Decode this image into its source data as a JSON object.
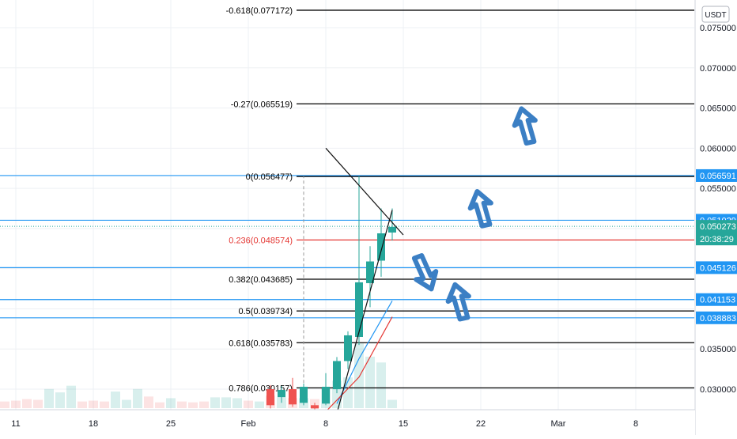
{
  "currency": "USDT",
  "time_badge": "20:38:29",
  "chart_data": {
    "type": "candlestick",
    "x_ticks": [
      "11",
      "18",
      "25",
      "Feb",
      "8",
      "15",
      "22",
      "Mar",
      "8"
    ],
    "x_tick_dates": [
      "2021-01-11",
      "2021-01-18",
      "2021-01-25",
      "2021-02-01",
      "2021-02-08",
      "2021-02-15",
      "2021-02-22",
      "2021-03-01",
      "2021-03-08"
    ],
    "y_ticks": [
      "0.075000",
      "0.070000",
      "0.065000",
      "0.060000",
      "0.055000",
      "0.035000",
      "0.030000"
    ],
    "ylim": [
      0.027,
      0.078
    ],
    "grid": true,
    "colors": {
      "up": "#26a69a",
      "down": "#ef5350",
      "fib": "#000000",
      "fib_highlight": "#e53935",
      "hline": "#2196f3",
      "arrow": "#3b7fc4"
    },
    "candles": [
      {
        "date": "2021-02-03",
        "open": 0.03,
        "high": 0.0305,
        "low": 0.0276,
        "close": 0.028
      },
      {
        "date": "2021-02-04",
        "open": 0.029,
        "high": 0.0304,
        "low": 0.0283,
        "close": 0.0299
      },
      {
        "date": "2021-02-05",
        "open": 0.03,
        "high": 0.0314,
        "low": 0.0278,
        "close": 0.0281
      },
      {
        "date": "2021-02-06",
        "open": 0.0283,
        "high": 0.0307,
        "low": 0.028,
        "close": 0.0303
      },
      {
        "date": "2021-02-07",
        "open": 0.028,
        "high": 0.0283,
        "low": 0.0273,
        "close": 0.0276
      },
      {
        "date": "2021-02-08",
        "open": 0.0282,
        "high": 0.032,
        "low": 0.028,
        "close": 0.0303
      },
      {
        "date": "2021-02-09",
        "open": 0.03,
        "high": 0.034,
        "low": 0.0295,
        "close": 0.0335
      },
      {
        "date": "2021-02-10",
        "open": 0.0335,
        "high": 0.0372,
        "low": 0.0325,
        "close": 0.0367
      },
      {
        "date": "2021-02-11",
        "open": 0.0365,
        "high": 0.0565,
        "low": 0.0355,
        "close": 0.0433
      },
      {
        "date": "2021-02-12",
        "open": 0.0432,
        "high": 0.0478,
        "low": 0.0402,
        "close": 0.0459
      },
      {
        "date": "2021-02-13",
        "open": 0.046,
        "high": 0.0525,
        "low": 0.044,
        "close": 0.0494
      },
      {
        "date": "2021-02-14",
        "open": 0.0495,
        "high": 0.0525,
        "low": 0.0485,
        "close": 0.0502
      }
    ],
    "volume_bars": [
      {
        "date": "2021-01-05",
        "value": 3,
        "dir": "down"
      },
      {
        "date": "2021-01-06",
        "value": 4,
        "dir": "up"
      },
      {
        "date": "2021-01-07",
        "value": 5,
        "dir": "down"
      },
      {
        "date": "2021-01-08",
        "value": 6,
        "dir": "down"
      },
      {
        "date": "2021-01-09",
        "value": 7,
        "dir": "down"
      },
      {
        "date": "2021-01-10",
        "value": 8,
        "dir": "down"
      },
      {
        "date": "2021-01-11",
        "value": 9,
        "dir": "down"
      },
      {
        "date": "2021-01-12",
        "value": 11,
        "dir": "down"
      },
      {
        "date": "2021-01-13",
        "value": 10,
        "dir": "down"
      },
      {
        "date": "2021-01-14",
        "value": 23,
        "dir": "up"
      },
      {
        "date": "2021-01-15",
        "value": 19,
        "dir": "up"
      },
      {
        "date": "2021-01-16",
        "value": 27,
        "dir": "up"
      },
      {
        "date": "2021-01-17",
        "value": 8,
        "dir": "down"
      },
      {
        "date": "2021-01-18",
        "value": 9,
        "dir": "down"
      },
      {
        "date": "2021-01-19",
        "value": 8,
        "dir": "down"
      },
      {
        "date": "2021-01-20",
        "value": 20,
        "dir": "up"
      },
      {
        "date": "2021-01-21",
        "value": 10,
        "dir": "up"
      },
      {
        "date": "2021-01-22",
        "value": 23,
        "dir": "up"
      },
      {
        "date": "2021-01-23",
        "value": 14,
        "dir": "down"
      },
      {
        "date": "2021-01-24",
        "value": 7,
        "dir": "down"
      },
      {
        "date": "2021-01-25",
        "value": 12,
        "dir": "up"
      },
      {
        "date": "2021-01-26",
        "value": 8,
        "dir": "down"
      },
      {
        "date": "2021-01-27",
        "value": 7,
        "dir": "down"
      },
      {
        "date": "2021-01-28",
        "value": 8,
        "dir": "down"
      },
      {
        "date": "2021-01-29",
        "value": 13,
        "dir": "up"
      },
      {
        "date": "2021-01-30",
        "value": 13,
        "dir": "up"
      },
      {
        "date": "2021-01-31",
        "value": 12,
        "dir": "up"
      },
      {
        "date": "2021-02-01",
        "value": 9,
        "dir": "down"
      },
      {
        "date": "2021-02-02",
        "value": 8,
        "dir": "up"
      },
      {
        "date": "2021-02-03",
        "value": 15,
        "dir": "down"
      },
      {
        "date": "2021-02-04",
        "value": 13,
        "dir": "up"
      },
      {
        "date": "2021-02-05",
        "value": 12,
        "dir": "down"
      },
      {
        "date": "2021-02-06",
        "value": 12,
        "dir": "up"
      },
      {
        "date": "2021-02-07",
        "value": 11,
        "dir": "down"
      },
      {
        "date": "2021-02-08",
        "value": 24,
        "dir": "up"
      },
      {
        "date": "2021-02-09",
        "value": 33,
        "dir": "up"
      },
      {
        "date": "2021-02-10",
        "value": 37,
        "dir": "up"
      },
      {
        "date": "2021-02-11",
        "value": 78,
        "dir": "up"
      },
      {
        "date": "2021-02-12",
        "value": 62,
        "dir": "up"
      },
      {
        "date": "2021-02-13",
        "value": 55,
        "dir": "up"
      },
      {
        "date": "2021-02-14",
        "value": 10,
        "dir": "up"
      }
    ],
    "fib_levels": [
      {
        "label": "-0.618(0.077172)",
        "price": 0.077172
      },
      {
        "label": "-0.27(0.065519)",
        "price": 0.065519
      },
      {
        "label": "0(0.056477)",
        "price": 0.056477
      },
      {
        "label": "0.236(0.048574)",
        "price": 0.048574,
        "highlight": true
      },
      {
        "label": "0.382(0.043685)",
        "price": 0.043685
      },
      {
        "label": "0.5(0.039734)",
        "price": 0.039734
      },
      {
        "label": "0.618(0.035783)",
        "price": 0.035783
      },
      {
        "label": "0.786(0.030157)",
        "price": 0.030157
      }
    ],
    "horizontal_lines": [
      {
        "price": 0.056591,
        "label": "0.056591"
      },
      {
        "price": 0.051029,
        "label": "0.051029"
      },
      {
        "price": 0.045126,
        "label": "0.045126"
      },
      {
        "price": 0.041153,
        "label": "0.041153"
      },
      {
        "price": 0.038883,
        "label": "0.038883"
      }
    ],
    "last_price": {
      "price": 0.050273,
      "label": "0.050273"
    },
    "trendlines": [
      {
        "from": {
          "date": "2021-02-08",
          "price": 0.06
        },
        "to": {
          "date": "2021-02-15",
          "price": 0.0492
        }
      },
      {
        "from": {
          "date": "2021-02-09",
          "price": 0.027
        },
        "to": {
          "date": "2021-02-14",
          "price": 0.0523
        }
      }
    ],
    "moving_averages": [
      {
        "color": "#2196f3",
        "points": [
          {
            "date": "2021-02-09",
            "price": 0.0282
          },
          {
            "date": "2021-02-11",
            "price": 0.0338
          },
          {
            "date": "2021-02-14",
            "price": 0.041
          }
        ]
      },
      {
        "color": "#e53935",
        "points": [
          {
            "date": "2021-02-08",
            "price": 0.0272
          },
          {
            "date": "2021-02-11",
            "price": 0.0315
          },
          {
            "date": "2021-02-14",
            "price": 0.039
          }
        ]
      }
    ],
    "dashed_marker": {
      "date": "2021-02-06",
      "from": 0.028,
      "to": 0.0565
    },
    "arrows": [
      {
        "dir": "up",
        "date": "2021-02-26",
        "price": 0.0628
      },
      {
        "dir": "up",
        "date": "2021-02-22",
        "price": 0.0525
      },
      {
        "dir": "down",
        "date": "2021-02-17",
        "price": 0.0445
      },
      {
        "dir": "up",
        "date": "2021-02-20",
        "price": 0.0409
      }
    ]
  }
}
